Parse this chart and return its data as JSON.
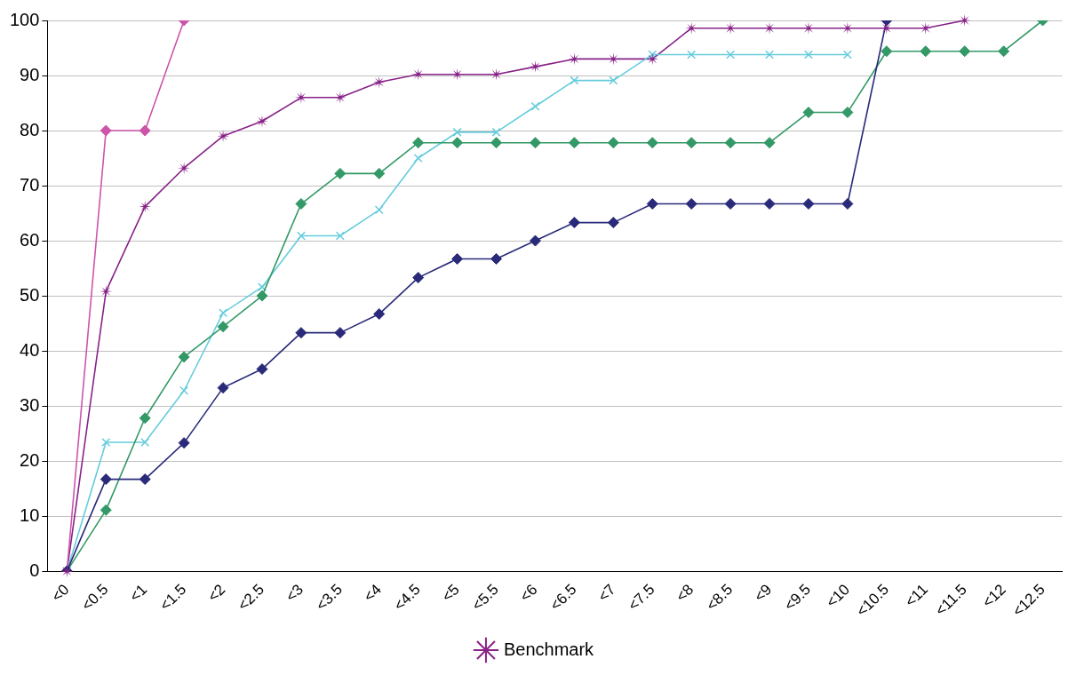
{
  "chart_data": {
    "type": "line",
    "categories": [
      "<0",
      "<0.5",
      "<1",
      "<1.5",
      "<2",
      "<2.5",
      "<3",
      "<3.5",
      "<4",
      "<4.5",
      "<5",
      "<5.5",
      "<6",
      "<6.5",
      "<7",
      "<7.5",
      "<8",
      "<8.5",
      "<9",
      "<9.5",
      "<10",
      "<10.5",
      "<11",
      "<11.5",
      "<12",
      "<12.5"
    ],
    "series": [
      {
        "color": "#2a2a7a",
        "marker": "diamond",
        "values": [
          0,
          16.7,
          16.7,
          23.3,
          33.3,
          36.7,
          43.3,
          43.3,
          46.7,
          53.3,
          56.7,
          56.7,
          60,
          63.3,
          63.3,
          66.7,
          66.7,
          66.7,
          66.7,
          66.7,
          66.7,
          100,
          null,
          null,
          null,
          null
        ]
      },
      {
        "color": "#cc55aa",
        "marker": "diamond",
        "values": [
          0,
          80,
          80,
          100,
          null,
          null,
          null,
          null,
          null,
          null,
          null,
          null,
          null,
          null,
          null,
          null,
          null,
          null,
          null,
          null,
          null,
          null,
          null,
          null,
          null,
          null
        ]
      },
      {
        "color": "#339966",
        "marker": "diamond",
        "values": [
          0,
          11.1,
          27.8,
          38.9,
          44.4,
          50,
          66.7,
          72.2,
          72.2,
          77.8,
          77.8,
          77.8,
          77.8,
          77.8,
          77.8,
          77.8,
          77.8,
          77.8,
          77.8,
          83.3,
          83.3,
          94.4,
          94.4,
          94.4,
          94.4,
          100
        ]
      },
      {
        "color": "#66ccdd",
        "marker": "cross",
        "values": [
          0,
          23.4,
          23.4,
          32.8,
          46.9,
          51.6,
          60.9,
          60.9,
          65.6,
          75,
          79.7,
          79.7,
          84.4,
          89.1,
          89.1,
          93.8,
          93.8,
          93.8,
          93.8,
          93.8,
          93.8,
          null,
          null,
          null,
          null,
          null
        ]
      },
      {
        "name": "Benchmark",
        "color": "#882288",
        "marker": "star",
        "values": [
          0,
          50.8,
          66.2,
          73.2,
          79,
          81.7,
          86,
          86,
          88.8,
          90.2,
          90.2,
          90.2,
          91.6,
          93,
          93,
          93,
          98.6,
          98.6,
          98.6,
          98.6,
          98.6,
          98.6,
          98.6,
          100,
          null,
          null
        ]
      }
    ],
    "ylim": [
      0,
      100
    ],
    "yticks": [
      0,
      10,
      20,
      30,
      40,
      50,
      60,
      70,
      80,
      90,
      100
    ],
    "grid": "y",
    "legend": "bottom",
    "line_style": "solid"
  }
}
